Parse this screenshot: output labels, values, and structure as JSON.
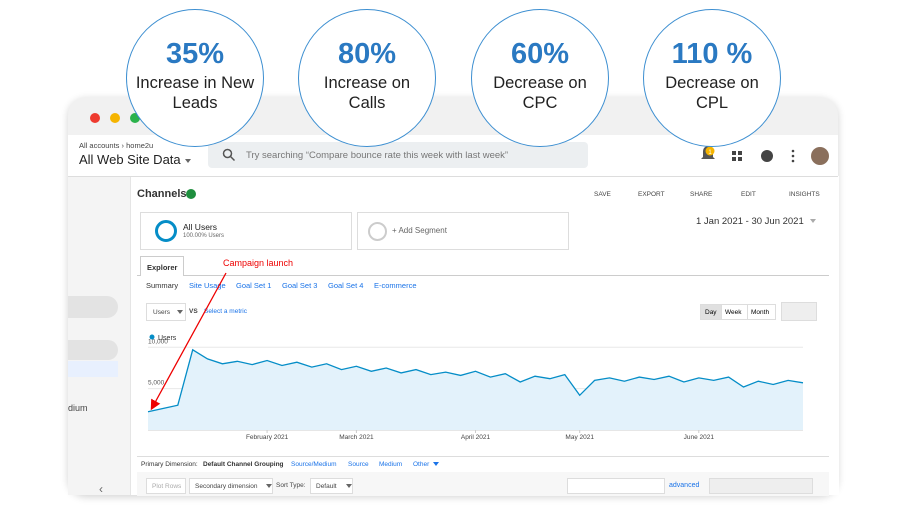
{
  "stats": [
    {
      "value": "35%",
      "label": "Increase in New Leads"
    },
    {
      "value": "80%",
      "label": "Increase on Calls"
    },
    {
      "value": "60%",
      "label": "Decrease on CPC"
    },
    {
      "value": "110 %",
      "label": "Decrease on CPL"
    }
  ],
  "header": {
    "breadcrumb": "All accounts › home2u",
    "property": "All Web Site Data",
    "search_placeholder": "Try searching “Compare bounce rate this week with last week”",
    "notification_count": "1"
  },
  "sidebar": {
    "partial_item": "dium"
  },
  "report": {
    "title": "Channels",
    "actions": [
      "SAVE",
      "EXPORT",
      "SHARE",
      "EDIT",
      "INSIGHTS"
    ],
    "segment": {
      "name": "All Users",
      "detail": "100.00% Users"
    },
    "add_segment": "+ Add Segment",
    "date_range": "1 Jan 2021 - 30 Jun 2021",
    "tab": "Explorer",
    "subtabs": [
      "Summary",
      "Site Usage",
      "Goal Set 1",
      "Goal Set 3",
      "Goal Set 4",
      "E-commerce"
    ],
    "metric": "Users",
    "vs": "VS",
    "select_metric": "Select a metric",
    "granularity": [
      "Day",
      "Week",
      "Month"
    ],
    "primary_dimension_label": "Primary Dimension:",
    "dimensions": [
      "Default Channel Grouping",
      "Source/Medium",
      "Source",
      "Medium",
      "Other"
    ],
    "plot_rows": "Plot Rows",
    "secondary_dimension": "Secondary dimension",
    "sort_type_label": "Sort Type:",
    "sort_type": "Default",
    "advanced": "advanced"
  },
  "chart_data": {
    "type": "line",
    "annotation": "Campaign launch",
    "categories": [
      null,
      null,
      null,
      null,
      null,
      null,
      null,
      null,
      "February 2021",
      null,
      null,
      null,
      null,
      null,
      "March 2021",
      null,
      null,
      null,
      null,
      null,
      null,
      null,
      "April 2021",
      null,
      null,
      null,
      null,
      null,
      null,
      "May 2021",
      null,
      null,
      null,
      null,
      null,
      null,
      null,
      "June 2021",
      null,
      null,
      null,
      null,
      null,
      null,
      null
    ],
    "series": [
      {
        "name": "Users",
        "color": "#058dc7",
        "values": [
          2200,
          2600,
          3000,
          9700,
          8600,
          8000,
          8300,
          7900,
          8400,
          7800,
          8200,
          7600,
          8000,
          7300,
          7700,
          7100,
          7500,
          6900,
          7300,
          6700,
          7000,
          6600,
          7100,
          6400,
          6800,
          5800,
          6500,
          6200,
          6700,
          4200,
          6000,
          6300,
          5900,
          6400,
          6100,
          6500,
          5800,
          6300,
          6000,
          6400,
          5200,
          5900,
          5500,
          6000,
          5700
        ]
      }
    ],
    "ylim": [
      0,
      11000
    ],
    "yticks": [
      {
        "value": 10000,
        "label": "10,000"
      },
      {
        "value": 5000,
        "label": "5,000"
      }
    ]
  }
}
